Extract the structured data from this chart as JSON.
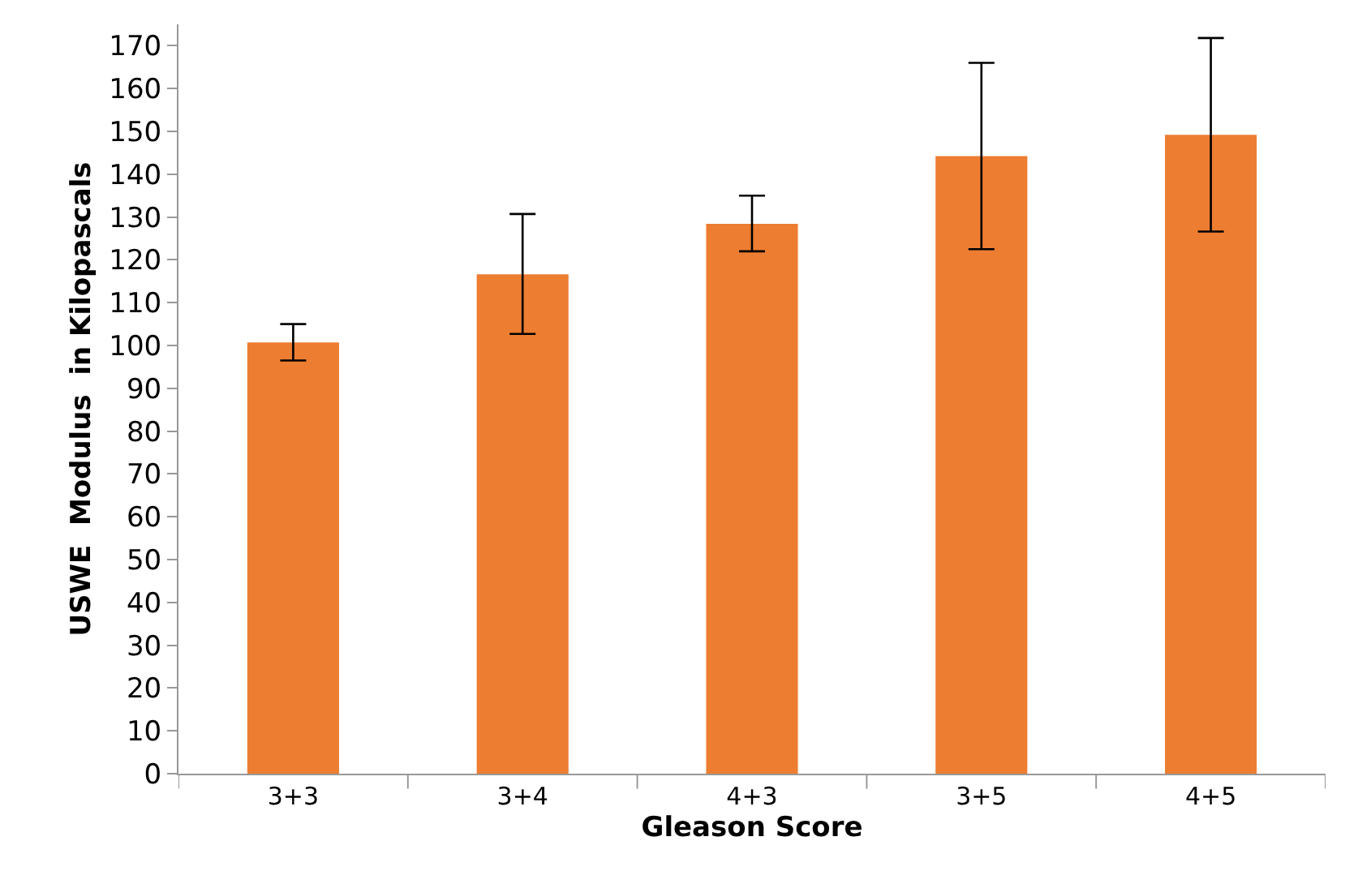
{
  "chart_data": {
    "type": "bar",
    "xlabel": "Gleason Score",
    "ylabel": "USWE  Modulus  in Kilopascals",
    "categories": [
      "3+3",
      "3+4",
      "4+3",
      "3+5",
      "4+5"
    ],
    "values": [
      100.7,
      116.6,
      128.4,
      144.2,
      149.2
    ],
    "errors": [
      [
        96.5,
        105
      ],
      [
        102.7,
        130.7
      ],
      [
        122,
        135
      ],
      [
        122.5,
        166
      ],
      [
        126.6,
        171.8
      ]
    ],
    "color": "#ed7d31",
    "ylim": [
      0,
      175
    ],
    "yticks": [
      0,
      10,
      20,
      30,
      40,
      50,
      60,
      70,
      80,
      90,
      100,
      110,
      120,
      130,
      140,
      150,
      160,
      170
    ],
    "legend": false
  }
}
